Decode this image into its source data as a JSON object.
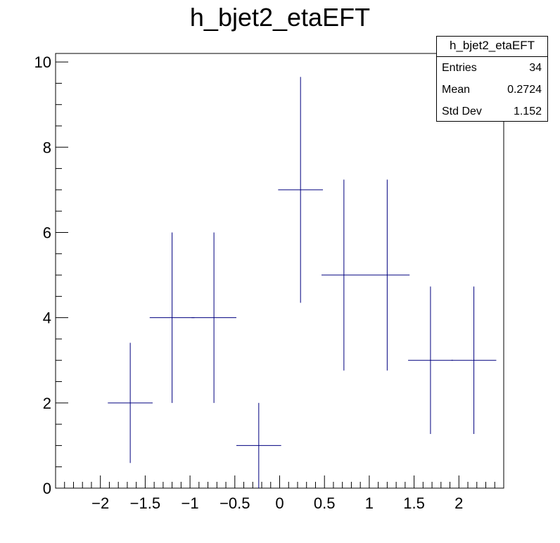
{
  "chart_data": {
    "type": "histogram",
    "title": "h_bjet2_etaEFT",
    "xlabel": "",
    "ylabel": "",
    "xlim": [
      -2.5,
      2.5
    ],
    "ylim": [
      0,
      10.2
    ],
    "x_ticks": [
      "−2",
      "−1.5",
      "−1",
      "−0.5",
      "0",
      "0.5",
      "1",
      "1.5",
      "2"
    ],
    "x_tick_values": [
      -2,
      -1.5,
      -1,
      -0.5,
      0,
      0.5,
      1,
      1.5,
      2
    ],
    "y_ticks": [
      "0",
      "2",
      "4",
      "6",
      "8",
      "10"
    ],
    "y_tick_values": [
      0,
      2,
      4,
      6,
      8,
      10
    ],
    "color": "#00007f",
    "bins": [
      {
        "center": -1.667,
        "low": -1.917,
        "high": -1.417,
        "value": 2,
        "err_low": 1.41,
        "err_high": 1.41
      },
      {
        "center": -1.2,
        "low": -1.45,
        "high": -0.95,
        "value": 4,
        "err_low": 2.0,
        "err_high": 2.0
      },
      {
        "center": -0.733,
        "low": -0.983,
        "high": -0.483,
        "value": 4,
        "err_low": 2.0,
        "err_high": 2.0
      },
      {
        "center": -0.233,
        "low": -0.483,
        "high": 0.017,
        "value": 1,
        "err_low": 1.0,
        "err_high": 1.0
      },
      {
        "center": 0.233,
        "low": -0.017,
        "high": 0.483,
        "value": 7,
        "err_low": 2.65,
        "err_high": 2.65
      },
      {
        "center": 0.717,
        "low": 0.467,
        "high": 0.967,
        "value": 5,
        "err_low": 2.24,
        "err_high": 2.24
      },
      {
        "center": 1.2,
        "low": 0.95,
        "high": 1.45,
        "value": 5,
        "err_low": 2.24,
        "err_high": 2.24
      },
      {
        "center": 1.683,
        "low": 1.433,
        "high": 1.933,
        "value": 3,
        "err_low": 1.73,
        "err_high": 1.73
      },
      {
        "center": 2.167,
        "low": 1.917,
        "high": 2.417,
        "value": 3,
        "err_low": 1.73,
        "err_high": 1.73
      }
    ]
  },
  "stats": {
    "name": "h_bjet2_etaEFT",
    "entries_label": "Entries",
    "entries_value": "34",
    "mean_label": "Mean",
    "mean_value": "0.2724",
    "stddev_label": "Std Dev",
    "stddev_value": "1.152"
  }
}
